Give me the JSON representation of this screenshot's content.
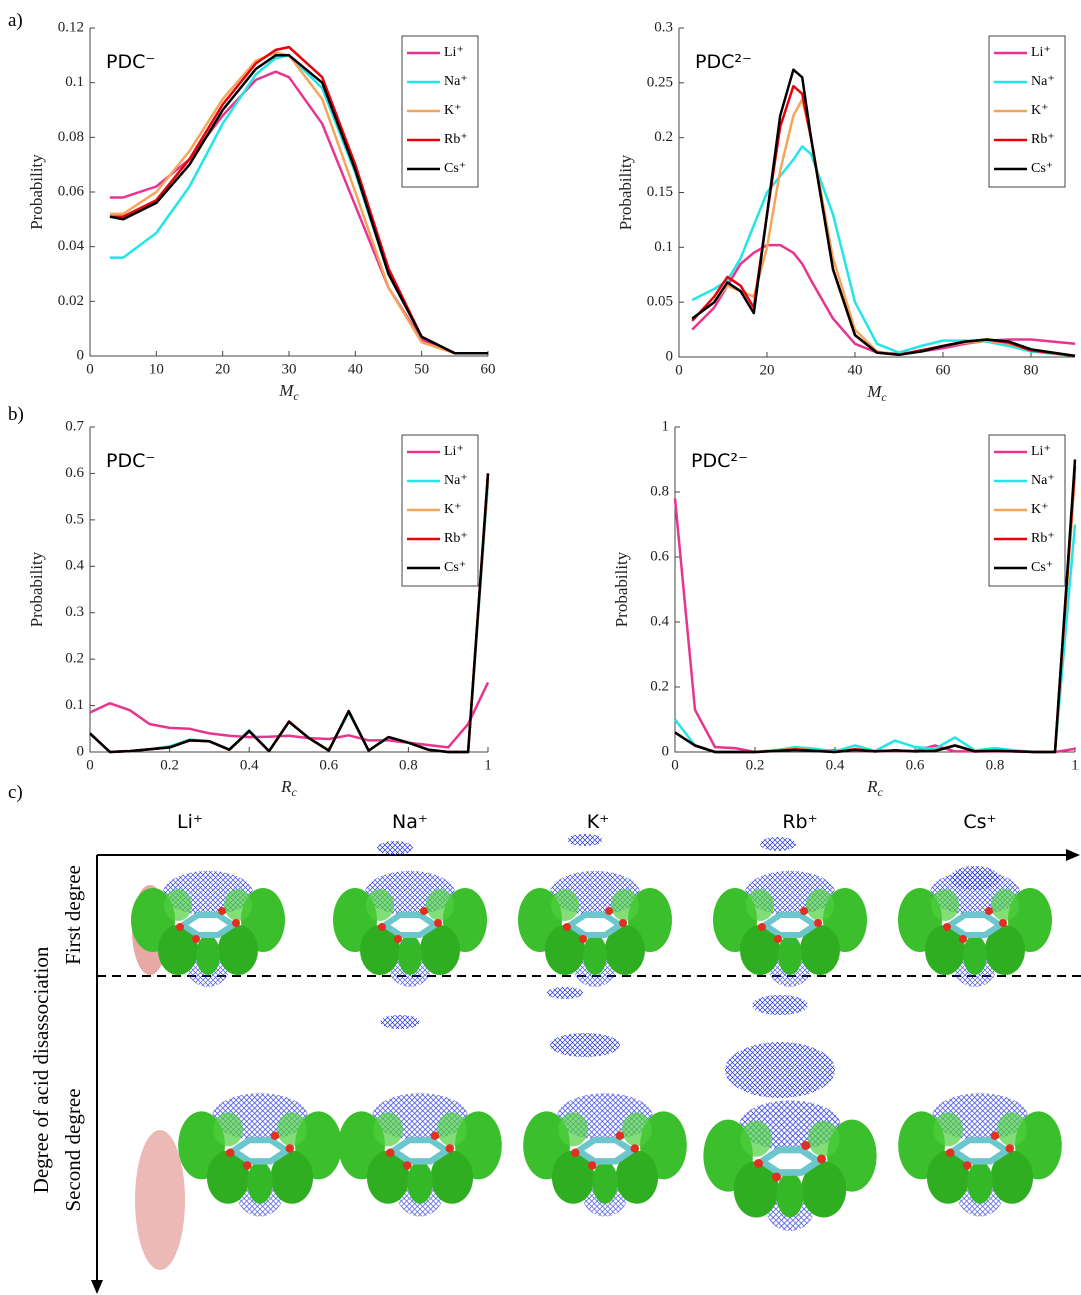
{
  "panel_labels": [
    "a)",
    "b)",
    "c)"
  ],
  "chart_data": [
    {
      "type": "line",
      "annotation": "PDC⁻",
      "ylabel": "Probability",
      "xlabel": "M",
      "xlabel_sub": "c",
      "xlim": [
        0,
        60
      ],
      "xticks": [
        0,
        10,
        20,
        30,
        40,
        50,
        60
      ],
      "ylim": [
        0,
        0.12
      ],
      "yticks": [
        0,
        0.02,
        0.04,
        0.06,
        0.08,
        0.1,
        0.12
      ],
      "legend": "upper right",
      "x": [
        3,
        5,
        10,
        15,
        20,
        25,
        28,
        30,
        35,
        40,
        45,
        50,
        55,
        60
      ],
      "series": [
        {
          "name": "Li⁺",
          "color": "#e8348f",
          "values": [
            0.058,
            0.058,
            0.062,
            0.072,
            0.088,
            0.101,
            0.104,
            0.102,
            0.085,
            0.055,
            0.025,
            0.006,
            0.001,
            0.001
          ]
        },
        {
          "name": "Na⁺",
          "color": "#22e5e8",
          "values": [
            0.036,
            0.036,
            0.045,
            0.062,
            0.085,
            0.103,
            0.109,
            0.11,
            0.098,
            0.067,
            0.03,
            0.007,
            0.001,
            0.001
          ]
        },
        {
          "name": "K⁺",
          "color": "#f5a55a",
          "values": [
            0.052,
            0.052,
            0.06,
            0.075,
            0.094,
            0.108,
            0.111,
            0.11,
            0.094,
            0.06,
            0.025,
            0.005,
            0.001,
            0.001
          ]
        },
        {
          "name": "Rb⁺",
          "color": "#e8000b",
          "values": [
            0.051,
            0.051,
            0.057,
            0.072,
            0.092,
            0.107,
            0.112,
            0.113,
            0.102,
            0.07,
            0.032,
            0.007,
            0.001,
            0.001
          ]
        },
        {
          "name": "Cs⁺",
          "color": "#000000",
          "values": [
            0.051,
            0.05,
            0.056,
            0.07,
            0.09,
            0.105,
            0.11,
            0.11,
            0.1,
            0.068,
            0.03,
            0.007,
            0.001,
            0.001
          ]
        }
      ]
    },
    {
      "type": "line",
      "annotation": "PDC²⁻",
      "ylabel": "Probability",
      "xlabel": "M",
      "xlabel_sub": "c",
      "xlim": [
        0,
        90
      ],
      "xticks": [
        0,
        20,
        40,
        60,
        80
      ],
      "ylim": [
        0,
        0.3
      ],
      "yticks": [
        0,
        0.05,
        0.1,
        0.15,
        0.2,
        0.25,
        0.3
      ],
      "legend": "upper right",
      "x": [
        3,
        8,
        11,
        14,
        17,
        20,
        23,
        26,
        28,
        30,
        35,
        40,
        45,
        50,
        55,
        60,
        65,
        70,
        75,
        80,
        90
      ],
      "series": [
        {
          "name": "Li⁺",
          "color": "#e8348f",
          "values": [
            0.025,
            0.045,
            0.065,
            0.085,
            0.095,
            0.102,
            0.102,
            0.095,
            0.085,
            0.07,
            0.035,
            0.012,
            0.004,
            0.003,
            0.005,
            0.008,
            0.012,
            0.015,
            0.016,
            0.016,
            0.012
          ]
        },
        {
          "name": "Na⁺",
          "color": "#22e5e8",
          "values": [
            0.052,
            0.062,
            0.07,
            0.09,
            0.12,
            0.15,
            0.165,
            0.18,
            0.192,
            0.185,
            0.13,
            0.05,
            0.012,
            0.004,
            0.01,
            0.015,
            0.015,
            0.014,
            0.01,
            0.005,
            0.001
          ]
        },
        {
          "name": "K⁺",
          "color": "#f5a55a",
          "values": [
            0.035,
            0.05,
            0.065,
            0.06,
            0.055,
            0.1,
            0.17,
            0.22,
            0.235,
            0.2,
            0.09,
            0.025,
            0.005,
            0.002,
            0.006,
            0.01,
            0.013,
            0.015,
            0.012,
            0.006,
            0.001
          ]
        },
        {
          "name": "Rb⁺",
          "color": "#e8000b",
          "values": [
            0.033,
            0.055,
            0.073,
            0.065,
            0.045,
            0.13,
            0.21,
            0.247,
            0.24,
            0.2,
            0.08,
            0.02,
            0.004,
            0.002,
            0.006,
            0.01,
            0.014,
            0.016,
            0.013,
            0.006,
            0.001
          ]
        },
        {
          "name": "Cs⁺",
          "color": "#000000",
          "values": [
            0.035,
            0.05,
            0.068,
            0.06,
            0.04,
            0.13,
            0.22,
            0.262,
            0.255,
            0.2,
            0.08,
            0.02,
            0.004,
            0.002,
            0.005,
            0.01,
            0.014,
            0.016,
            0.014,
            0.007,
            0.001
          ]
        }
      ]
    },
    {
      "type": "line",
      "annotation": "PDC⁻",
      "ylabel": "Probability",
      "xlabel": "R",
      "xlabel_sub": "c",
      "xlim": [
        0,
        1
      ],
      "xticks": [
        0,
        0.2,
        0.4,
        0.6,
        0.8,
        1
      ],
      "ylim": [
        0,
        0.7
      ],
      "yticks": [
        0,
        0.1,
        0.2,
        0.3,
        0.4,
        0.5,
        0.6,
        0.7
      ],
      "legend": "upper right",
      "x": [
        0,
        0.05,
        0.1,
        0.15,
        0.2,
        0.25,
        0.3,
        0.35,
        0.4,
        0.45,
        0.5,
        0.55,
        0.6,
        0.65,
        0.7,
        0.75,
        0.8,
        0.85,
        0.9,
        0.95,
        1
      ],
      "series": [
        {
          "name": "Li⁺",
          "color": "#e8348f",
          "values": [
            0.085,
            0.105,
            0.09,
            0.06,
            0.052,
            0.05,
            0.04,
            0.035,
            0.032,
            0.033,
            0.035,
            0.03,
            0.028,
            0.036,
            0.025,
            0.025,
            0.02,
            0.015,
            0.01,
            0.06,
            0.15
          ]
        },
        {
          "name": "Na⁺",
          "color": "#22e5e8",
          "values": [
            0.04,
            0,
            0.002,
            0.006,
            0.012,
            0.027,
            0.023,
            0.005,
            0.047,
            0.002,
            0.065,
            0.03,
            0.003,
            0.085,
            0.003,
            0.032,
            0.02,
            0.005,
            0,
            0,
            0.58
          ]
        },
        {
          "name": "K⁺",
          "color": "#f5a55a",
          "values": [
            0.04,
            0,
            0.002,
            0.006,
            0.01,
            0.025,
            0.023,
            0.005,
            0.045,
            0.002,
            0.065,
            0.03,
            0.003,
            0.087,
            0.003,
            0.032,
            0.02,
            0.005,
            0,
            0,
            0.59
          ]
        },
        {
          "name": "Rb⁺",
          "color": "#e8000b",
          "values": [
            0.04,
            0,
            0.002,
            0.006,
            0.01,
            0.025,
            0.023,
            0.005,
            0.045,
            0.002,
            0.066,
            0.03,
            0.003,
            0.088,
            0.003,
            0.032,
            0.02,
            0.005,
            0,
            0,
            0.6
          ]
        },
        {
          "name": "Cs⁺",
          "color": "#000000",
          "values": [
            0.04,
            0,
            0.002,
            0.006,
            0.01,
            0.025,
            0.023,
            0.005,
            0.045,
            0.002,
            0.065,
            0.03,
            0.003,
            0.088,
            0.003,
            0.032,
            0.02,
            0.005,
            0,
            0,
            0.6
          ]
        }
      ]
    },
    {
      "type": "line",
      "annotation": "PDC²⁻",
      "ylabel": "Probability",
      "xlabel": "R",
      "xlabel_sub": "c",
      "xlim": [
        0,
        1
      ],
      "xticks": [
        0,
        0.2,
        0.4,
        0.6,
        0.8,
        1
      ],
      "ylim": [
        0,
        1
      ],
      "yticks": [
        0,
        0.2,
        0.4,
        0.6,
        0.8,
        1
      ],
      "legend": "upper right",
      "x": [
        0,
        0.05,
        0.1,
        0.15,
        0.2,
        0.25,
        0.3,
        0.35,
        0.4,
        0.45,
        0.5,
        0.55,
        0.6,
        0.65,
        0.7,
        0.75,
        0.8,
        0.85,
        0.9,
        0.95,
        1
      ],
      "series": [
        {
          "name": "Li⁺",
          "color": "#e8348f",
          "values": [
            0.78,
            0.13,
            0.015,
            0.012,
            0,
            0.005,
            0.008,
            0.005,
            0.005,
            0.003,
            0.003,
            0.003,
            0.003,
            0.02,
            0.002,
            0.002,
            0.002,
            0.002,
            0,
            0,
            0.01
          ]
        },
        {
          "name": "Na⁺",
          "color": "#22e5e8",
          "values": [
            0.1,
            0.02,
            0,
            0,
            0,
            0.005,
            0.015,
            0.01,
            0.002,
            0.02,
            0.003,
            0.035,
            0.015,
            0.01,
            0.045,
            0.005,
            0.012,
            0.005,
            0,
            0,
            0.7
          ]
        },
        {
          "name": "K⁺",
          "color": "#f5a55a",
          "values": [
            0.06,
            0.02,
            0,
            0,
            0,
            0.005,
            0.01,
            0.005,
            0,
            0.01,
            0.002,
            0.005,
            0.002,
            0.005,
            0.02,
            0.003,
            0.005,
            0.002,
            0,
            0,
            0.85
          ]
        },
        {
          "name": "Rb⁺",
          "color": "#e8000b",
          "values": [
            0.06,
            0.02,
            0,
            0,
            0,
            0.003,
            0.008,
            0.004,
            0,
            0.008,
            0.002,
            0.005,
            0.002,
            0.004,
            0.02,
            0.002,
            0.004,
            0.002,
            0,
            0,
            0.88
          ]
        },
        {
          "name": "Cs⁺",
          "color": "#000000",
          "values": [
            0.06,
            0.02,
            0,
            0,
            0,
            0.003,
            0.006,
            0.003,
            0,
            0.006,
            0.002,
            0.005,
            0.002,
            0.003,
            0.02,
            0.002,
            0.004,
            0.002,
            0,
            0,
            0.9
          ]
        }
      ]
    }
  ],
  "panel_c": {
    "cations": [
      "Li⁺",
      "Na⁺",
      "K⁺",
      "Rb⁺",
      "Cs⁺"
    ],
    "axis_label": "Degree of acid disassociation",
    "rows": [
      "First degree",
      "Second degree"
    ]
  }
}
